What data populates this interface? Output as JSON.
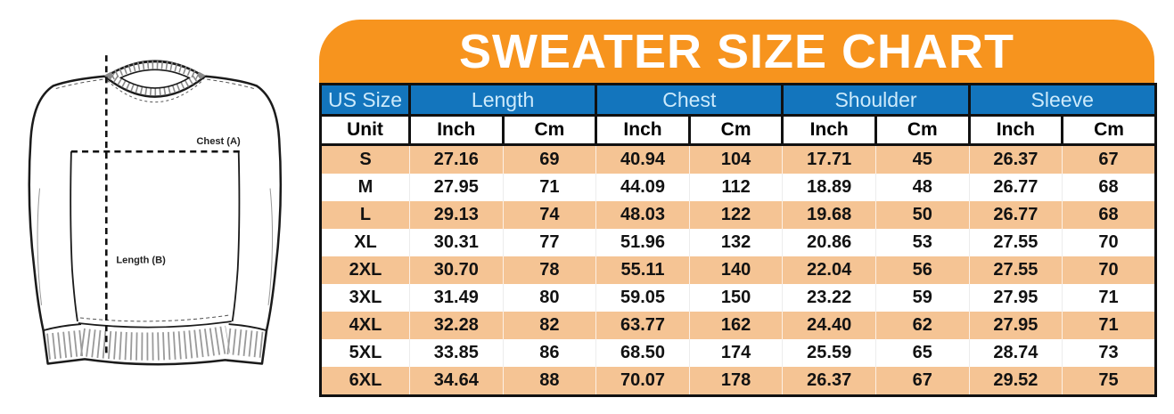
{
  "title": "SWEATER SIZE CHART",
  "diagram": {
    "chest_label": "Chest (A)",
    "length_label": "Length (B)"
  },
  "colors": {
    "banner_orange": "#F7941E",
    "header_blue": "#1375BD",
    "row_peach": "#F5C494",
    "header_text_light": "#CDEAFB",
    "border_black": "#111111"
  },
  "chart_data": {
    "type": "table",
    "title": "SWEATER SIZE CHART",
    "column_groups": [
      {
        "label": "US Size",
        "span": 1
      },
      {
        "label": "Length",
        "span": 2
      },
      {
        "label": "Chest",
        "span": 2
      },
      {
        "label": "Shoulder",
        "span": 2
      },
      {
        "label": "Sleeve",
        "span": 2
      }
    ],
    "unit_row": [
      "Unit",
      "Inch",
      "Cm",
      "Inch",
      "Cm",
      "Inch",
      "Cm",
      "Inch",
      "Cm"
    ],
    "rows": [
      [
        "S",
        "27.16",
        "69",
        "40.94",
        "104",
        "17.71",
        "45",
        "26.37",
        "67"
      ],
      [
        "M",
        "27.95",
        "71",
        "44.09",
        "112",
        "18.89",
        "48",
        "26.77",
        "68"
      ],
      [
        "L",
        "29.13",
        "74",
        "48.03",
        "122",
        "19.68",
        "50",
        "26.77",
        "68"
      ],
      [
        "XL",
        "30.31",
        "77",
        "51.96",
        "132",
        "20.86",
        "53",
        "27.55",
        "70"
      ],
      [
        "2XL",
        "30.70",
        "78",
        "55.11",
        "140",
        "22.04",
        "56",
        "27.55",
        "70"
      ],
      [
        "3XL",
        "31.49",
        "80",
        "59.05",
        "150",
        "23.22",
        "59",
        "27.95",
        "71"
      ],
      [
        "4XL",
        "32.28",
        "82",
        "63.77",
        "162",
        "24.40",
        "62",
        "27.95",
        "71"
      ],
      [
        "5XL",
        "33.85",
        "86",
        "68.50",
        "174",
        "25.59",
        "65",
        "28.74",
        "73"
      ],
      [
        "6XL",
        "34.64",
        "88",
        "70.07",
        "178",
        "26.37",
        "67",
        "29.52",
        "75"
      ]
    ]
  }
}
